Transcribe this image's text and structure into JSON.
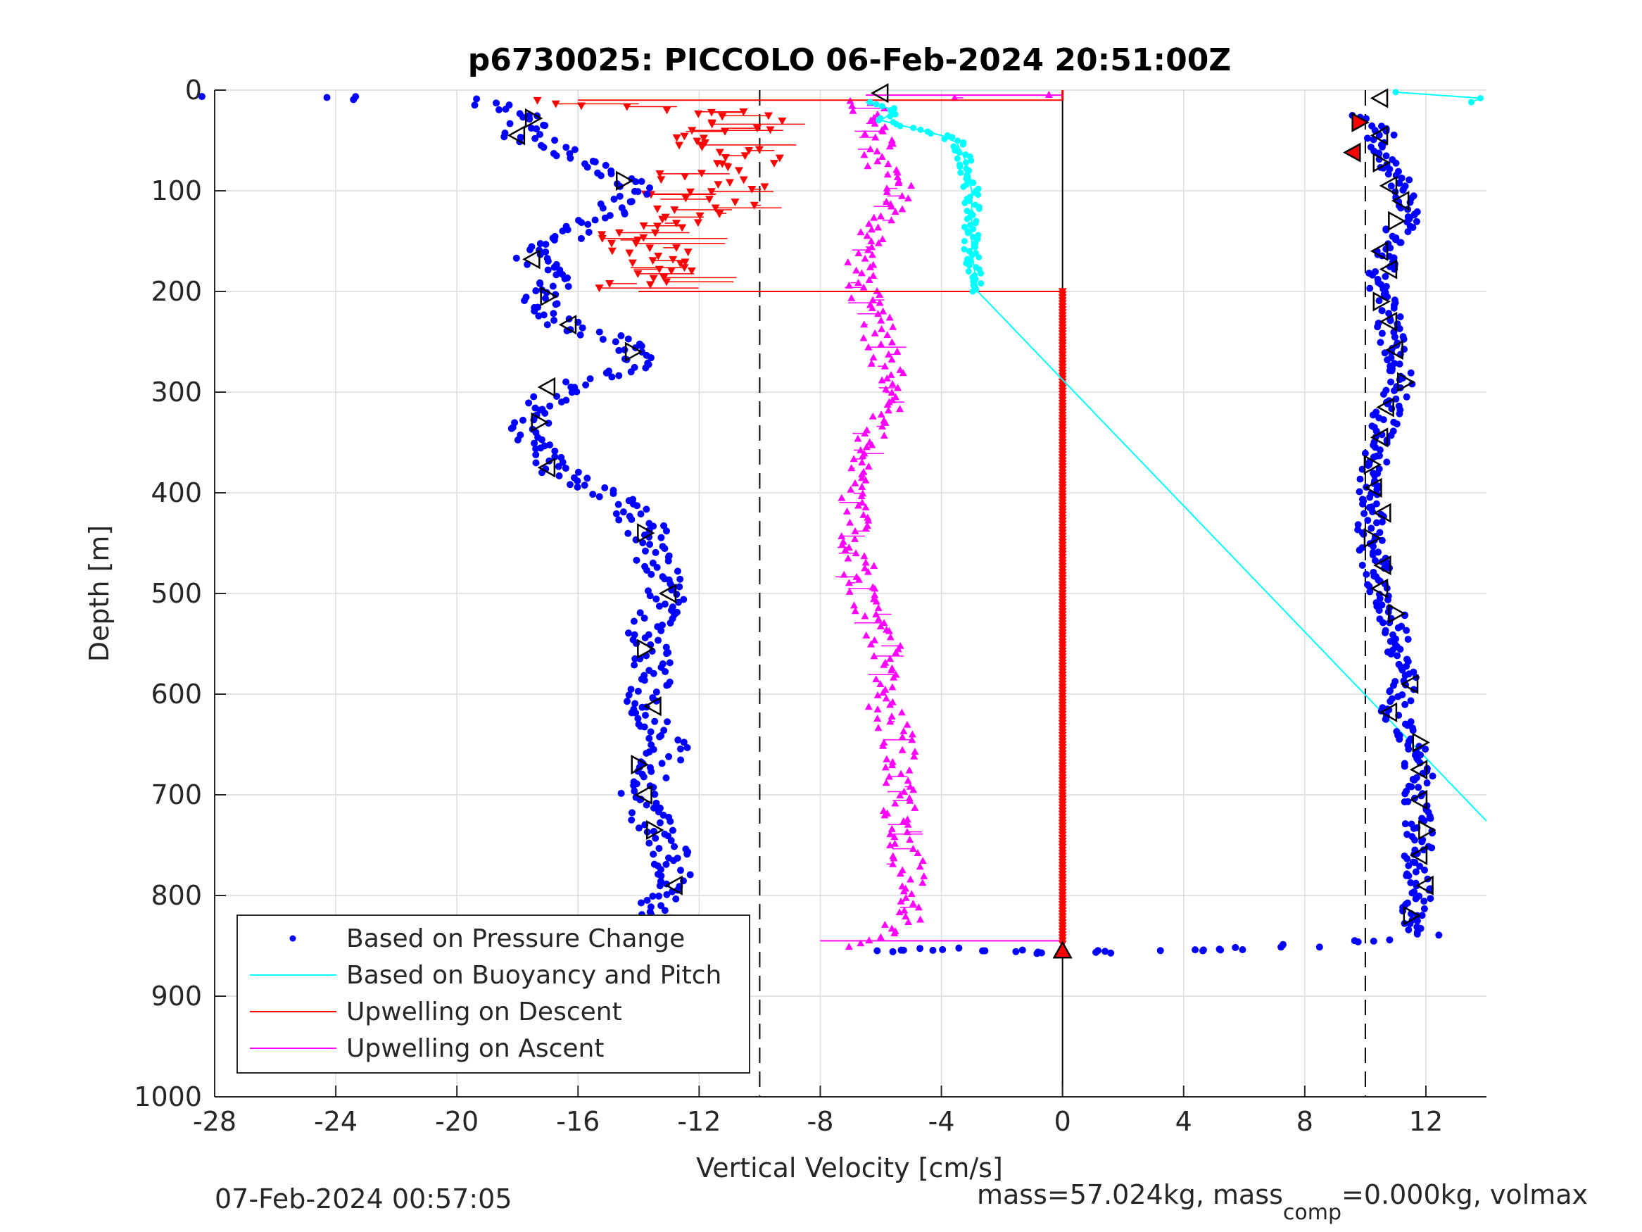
{
  "figure": {
    "footer_left": "07-Feb-2024 00:57:05",
    "footer_right_prefix": "mass=57.024kg, mass",
    "footer_right_sub": "comp",
    "footer_right_suffix": "=0.000kg, volmax"
  },
  "chart_data": {
    "type": "scatter",
    "title": "p6730025: PICCOLO 06-Feb-2024 20:51:00Z",
    "xlabel": "Vertical Velocity [cm/s]",
    "ylabel": "Depth [m]",
    "xlim": [
      -28,
      14
    ],
    "ylim": [
      0,
      1000
    ],
    "y_reversed": true,
    "xticks": [
      -28,
      -24,
      -20,
      -16,
      -12,
      -8,
      -4,
      0,
      4,
      8,
      12
    ],
    "yticks": [
      0,
      100,
      200,
      300,
      400,
      500,
      600,
      700,
      800,
      900,
      1000
    ],
    "grid": true,
    "legend_location": "bottom-left",
    "reference_lines": {
      "vertical_dashed_x": [
        -10,
        10
      ],
      "vertical_solid_x": [
        0
      ]
    },
    "series": [
      {
        "name": "Based on Pressure Change",
        "style": "dot",
        "color": "#0000ff",
        "descent": [
          [
            -28,
            7
          ],
          [
            -24,
            5
          ],
          [
            -23.5,
            9
          ],
          [
            -19.5,
            10
          ],
          [
            -17.5,
            30
          ],
          [
            -18,
            45
          ],
          [
            -16.5,
            60
          ],
          [
            -15,
            80
          ],
          [
            -14,
            100
          ],
          [
            -15,
            120
          ],
          [
            -16,
            140
          ],
          [
            -17.5,
            160
          ],
          [
            -17,
            180
          ],
          [
            -17,
            200
          ],
          [
            -17.2,
            215
          ],
          [
            -16.5,
            235
          ],
          [
            -14.5,
            250
          ],
          [
            -14,
            265
          ],
          [
            -14.5,
            280
          ],
          [
            -16,
            290
          ],
          [
            -17,
            305
          ],
          [
            -17.5,
            330
          ],
          [
            -17.5,
            350
          ],
          [
            -17,
            375
          ],
          [
            -15,
            400
          ],
          [
            -13.8,
            430
          ],
          [
            -13.5,
            460
          ],
          [
            -13,
            500
          ],
          [
            -13.7,
            540
          ],
          [
            -13.5,
            570
          ],
          [
            -13.8,
            610
          ],
          [
            -13,
            650
          ],
          [
            -13.5,
            680
          ],
          [
            -14,
            700
          ],
          [
            -13.5,
            730
          ],
          [
            -13,
            760
          ],
          [
            -12.8,
            790
          ],
          [
            -13.5,
            820
          ],
          [
            -13,
            845
          ]
        ],
        "bottom": [
          [
            -6,
            855
          ],
          [
            -4,
            853
          ],
          [
            -2,
            855
          ],
          [
            0,
            857
          ],
          [
            2,
            856
          ],
          [
            4,
            855
          ],
          [
            6,
            853
          ],
          [
            8,
            850
          ],
          [
            10,
            845
          ]
        ],
        "ascent": [
          [
            9.5,
            25
          ],
          [
            10.5,
            40
          ],
          [
            10.5,
            60
          ],
          [
            10.8,
            80
          ],
          [
            11.2,
            100
          ],
          [
            11.5,
            120
          ],
          [
            10.8,
            150
          ],
          [
            10.5,
            180
          ],
          [
            10.5,
            200
          ],
          [
            10.8,
            230
          ],
          [
            11,
            260
          ],
          [
            11.2,
            290
          ],
          [
            10.7,
            320
          ],
          [
            10.5,
            350
          ],
          [
            10.2,
            380
          ],
          [
            10.2,
            410
          ],
          [
            10.2,
            440
          ],
          [
            10.3,
            470
          ],
          [
            10.6,
            500
          ],
          [
            11,
            530
          ],
          [
            11.2,
            560
          ],
          [
            11.3,
            590
          ],
          [
            10.9,
            620
          ],
          [
            11.5,
            650
          ],
          [
            11.8,
            680
          ],
          [
            11.7,
            710
          ],
          [
            11.8,
            740
          ],
          [
            11.7,
            770
          ],
          [
            11.8,
            800
          ],
          [
            11.5,
            825
          ],
          [
            12,
            840
          ]
        ]
      },
      {
        "name": "Based on Buoyancy and Pitch",
        "style": "line+markers",
        "color": "#00ffff",
        "points": [
          [
            -6.5,
            12
          ],
          [
            -5.5,
            20
          ],
          [
            -6,
            30
          ],
          [
            -4,
            45
          ],
          [
            -3.5,
            52
          ],
          [
            -3.2,
            70
          ],
          [
            -3,
            100
          ],
          [
            -3,
            130
          ],
          [
            -3,
            160
          ],
          [
            -2.8,
            200
          ],
          [
            14,
            726
          ]
        ],
        "surface": [
          [
            11,
            2
          ],
          [
            13.8,
            8
          ],
          [
            13.5,
            12
          ]
        ]
      },
      {
        "name": "Upwelling on Descent",
        "style": "triangle-down",
        "color": "#ff0000",
        "points": [
          [
            -16,
            10
          ],
          [
            -12,
            20
          ],
          [
            -10,
            30
          ],
          [
            -11,
            40
          ],
          [
            -13.5,
            48
          ],
          [
            -11,
            55
          ],
          [
            -11,
            65
          ],
          [
            -10.5,
            75
          ],
          [
            -12,
            85
          ],
          [
            -10.5,
            95
          ],
          [
            -12.5,
            105
          ],
          [
            -11.5,
            115
          ],
          [
            -12.5,
            125
          ],
          [
            -13.5,
            140
          ],
          [
            -14,
            155
          ],
          [
            -13.8,
            170
          ],
          [
            -13.2,
            185
          ],
          [
            -14,
            195
          ]
        ],
        "column": {
          "x": 0,
          "from": 200,
          "to": 850
        }
      },
      {
        "name": "Upwelling on Ascent",
        "style": "triangle-up",
        "color": "#ff00ff",
        "points": [
          [
            -6.5,
            850
          ],
          [
            -5,
            820
          ],
          [
            -5,
            790
          ],
          [
            -5.2,
            760
          ],
          [
            -5.3,
            730
          ],
          [
            -5.5,
            700
          ],
          [
            -5.3,
            670
          ],
          [
            -5.5,
            640
          ],
          [
            -6,
            610
          ],
          [
            -6,
            580
          ],
          [
            -5.8,
            550
          ],
          [
            -6.3,
            520
          ],
          [
            -6.8,
            490
          ],
          [
            -6.7,
            460
          ],
          [
            -6.8,
            430
          ],
          [
            -7,
            400
          ],
          [
            -6.5,
            370
          ],
          [
            -6.3,
            340
          ],
          [
            -5.8,
            310
          ],
          [
            -5.7,
            280
          ],
          [
            -6,
            250
          ],
          [
            -6.3,
            220
          ],
          [
            -6.5,
            200
          ],
          [
            -6.8,
            170
          ],
          [
            -6.5,
            150
          ],
          [
            -5.8,
            130
          ],
          [
            -5.3,
            110
          ],
          [
            -5.6,
            90
          ],
          [
            -6,
            70
          ],
          [
            -6,
            50
          ],
          [
            -6.3,
            30
          ],
          [
            -6.5,
            10
          ],
          [
            -3.5,
            8
          ],
          [
            0,
            5
          ]
        ]
      }
    ],
    "outlined_triangles": {
      "descent": [
        [
          -6,
          3
        ],
        [
          -17.5,
          28
        ],
        [
          -18,
          45
        ],
        [
          -14.5,
          90
        ],
        [
          -17.5,
          168
        ],
        [
          -17,
          205
        ],
        [
          -16.3,
          233
        ],
        [
          -14.2,
          260
        ],
        [
          -17,
          295
        ],
        [
          -17.3,
          330
        ],
        [
          -17,
          375
        ],
        [
          -13.8,
          440
        ],
        [
          -13,
          500
        ],
        [
          -13.8,
          555
        ],
        [
          -13.5,
          612
        ],
        [
          -14,
          670
        ],
        [
          -13.8,
          700
        ],
        [
          -13.5,
          735
        ],
        [
          -12.8,
          790
        ],
        [
          -13,
          845
        ]
      ],
      "ascent": [
        [
          10.5,
          8
        ],
        [
          9.8,
          32
        ],
        [
          9.6,
          62
        ],
        [
          10.5,
          45
        ],
        [
          10.5,
          72
        ],
        [
          10.8,
          95
        ],
        [
          11.2,
          110
        ],
        [
          11,
          130
        ],
        [
          10.5,
          160
        ],
        [
          10.8,
          178
        ],
        [
          10.5,
          210
        ],
        [
          10.8,
          230
        ],
        [
          11,
          258
        ],
        [
          11.3,
          290
        ],
        [
          10.7,
          315
        ],
        [
          10.5,
          345
        ],
        [
          10.2,
          372
        ],
        [
          10.3,
          395
        ],
        [
          10.6,
          420
        ],
        [
          10.2,
          445
        ],
        [
          10.6,
          472
        ],
        [
          10.5,
          495
        ],
        [
          11,
          520
        ],
        [
          11.5,
          590
        ],
        [
          10.8,
          618
        ],
        [
          11.8,
          648
        ],
        [
          11.8,
          675
        ],
        [
          11.8,
          705
        ],
        [
          12,
          735
        ],
        [
          11.8,
          760
        ],
        [
          12,
          790
        ],
        [
          11.5,
          820
        ]
      ],
      "bottom": [
        [
          0,
          855
        ]
      ]
    }
  }
}
